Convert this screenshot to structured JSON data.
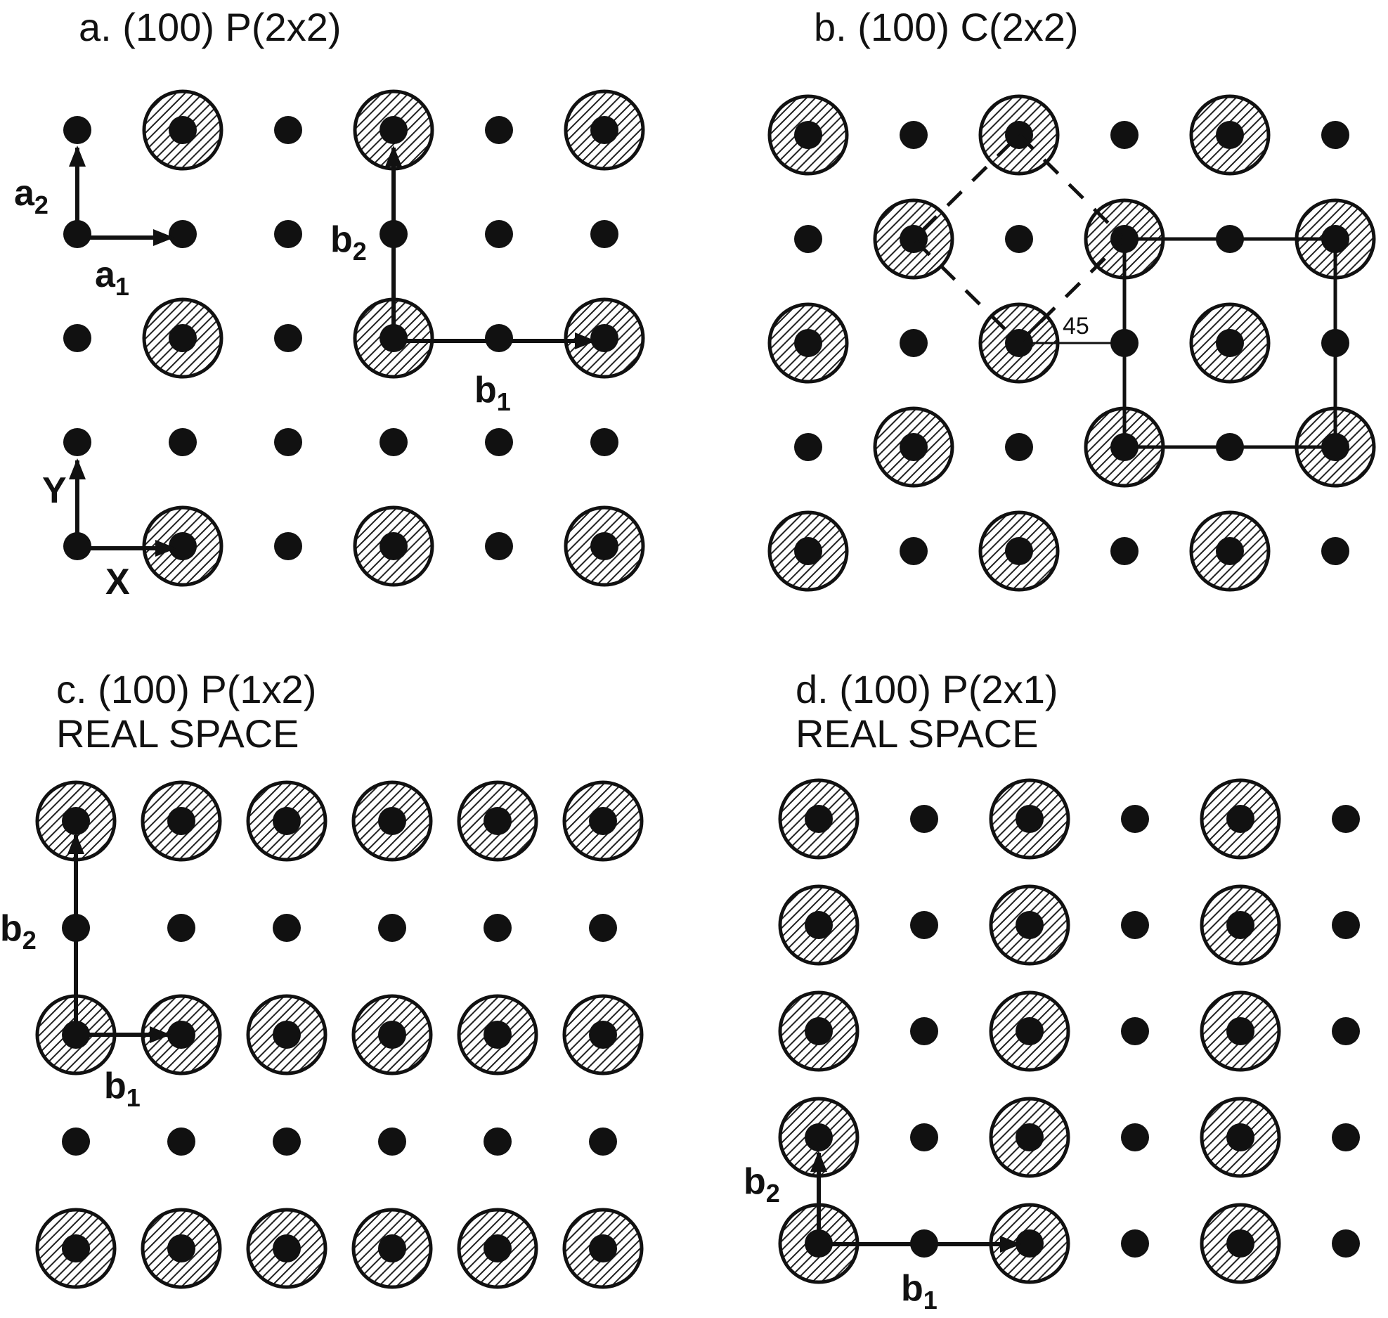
{
  "figure": {
    "panels": [
      {
        "id": "a",
        "title": "a.  (100) P(2x2)",
        "rows": [
          "-O-O-O",
          "------",
          "-O-O-O",
          "------",
          "-O-O-O"
        ],
        "vector_labels": [
          {
            "key": "a2",
            "base": "a",
            "sub": "2"
          },
          {
            "key": "a1",
            "base": "a",
            "sub": "1"
          },
          {
            "key": "b2",
            "base": "b",
            "sub": "2"
          },
          {
            "key": "b1",
            "base": "b",
            "sub": "1"
          },
          {
            "key": "Y",
            "base": "Y",
            "sub": ""
          },
          {
            "key": "X",
            "base": "X",
            "sub": ""
          }
        ]
      },
      {
        "id": "b",
        "title": "b.  (100) C(2x2)",
        "rows": [
          "O-O-O-",
          "-O-O-O",
          "O-O-O-",
          "-O-O-O",
          "O-O-O-"
        ],
        "angle_label": "45"
      },
      {
        "id": "c",
        "title": "c. (100) P(1x2)",
        "subtitle": "REAL SPACE",
        "rows": [
          "OOOOOO",
          "------",
          "OOOOOO",
          "------",
          "OOOOOO"
        ],
        "vector_labels": [
          {
            "key": "b2",
            "base": "b",
            "sub": "2"
          },
          {
            "key": "b1",
            "base": "b",
            "sub": "1"
          }
        ]
      },
      {
        "id": "d",
        "title": "d. (100) P(2x1)",
        "subtitle": "REAL SPACE",
        "rows": [
          "O-O-O-",
          "O-O-O-",
          "O-O-O-",
          "O-O-O-",
          "O-O-O-"
        ],
        "vector_labels": [
          {
            "key": "b2",
            "base": "b",
            "sub": "2"
          },
          {
            "key": "b1",
            "base": "b",
            "sub": "1"
          }
        ]
      }
    ]
  }
}
